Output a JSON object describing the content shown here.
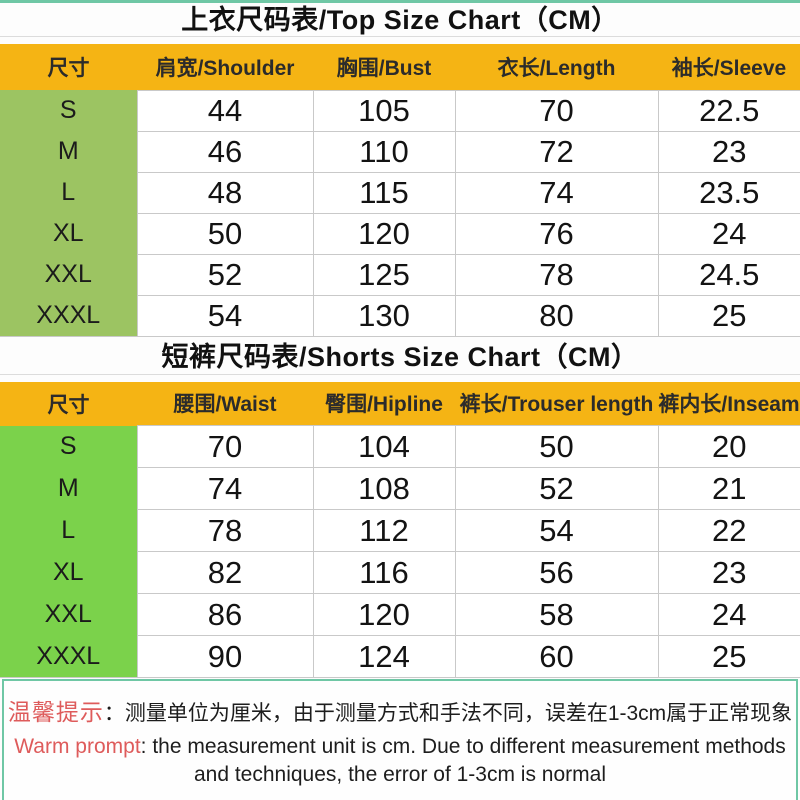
{
  "colors": {
    "header_bg": "#F5B414",
    "size_col_top": "#9CC462",
    "size_col_shorts": "#7BD24B",
    "frame_teal": "#6FC7A5",
    "accent_red": "#DE5B5B",
    "grid_line": "#C9C9C9"
  },
  "tables": [
    {
      "title": "上衣尺码表/Top Size Chart（CM）",
      "columns": [
        "尺寸",
        "肩宽/Shoulder",
        "胸围/Bust",
        "衣长/Length",
        "袖长/Sleeve"
      ],
      "rows": [
        [
          "S",
          "44",
          "105",
          "70",
          "22.5"
        ],
        [
          "M",
          "46",
          "110",
          "72",
          "23"
        ],
        [
          "L",
          "48",
          "115",
          "74",
          "23.5"
        ],
        [
          "XL",
          "50",
          "120",
          "76",
          "24"
        ],
        [
          "XXL",
          "52",
          "125",
          "78",
          "24.5"
        ],
        [
          "XXXL",
          "54",
          "130",
          "80",
          "25"
        ]
      ]
    },
    {
      "title": "短裤尺码表/Shorts Size Chart（CM）",
      "columns": [
        "尺寸",
        "腰围/Waist",
        "臀围/Hipline",
        "裤长/Trouser length",
        "裤内长/Inseam"
      ],
      "rows": [
        [
          "S",
          "70",
          "104",
          "50",
          "20"
        ],
        [
          "M",
          "74",
          "108",
          "52",
          "21"
        ],
        [
          "L",
          "78",
          "112",
          "54",
          "22"
        ],
        [
          "XL",
          "82",
          "116",
          "56",
          "23"
        ],
        [
          "XXL",
          "86",
          "120",
          "58",
          "24"
        ],
        [
          "XXXL",
          "90",
          "124",
          "60",
          "25"
        ]
      ]
    }
  ],
  "note": {
    "zh_label": "温馨提示",
    "zh_text": "：测量单位为厘米，由于测量方式和手法不同，误差在1-3cm属于正常现象",
    "en_label": "Warm prompt",
    "en_text": ": the measurement unit is cm. Due to different measurement methods and techniques, the error of 1-3cm is normal"
  }
}
